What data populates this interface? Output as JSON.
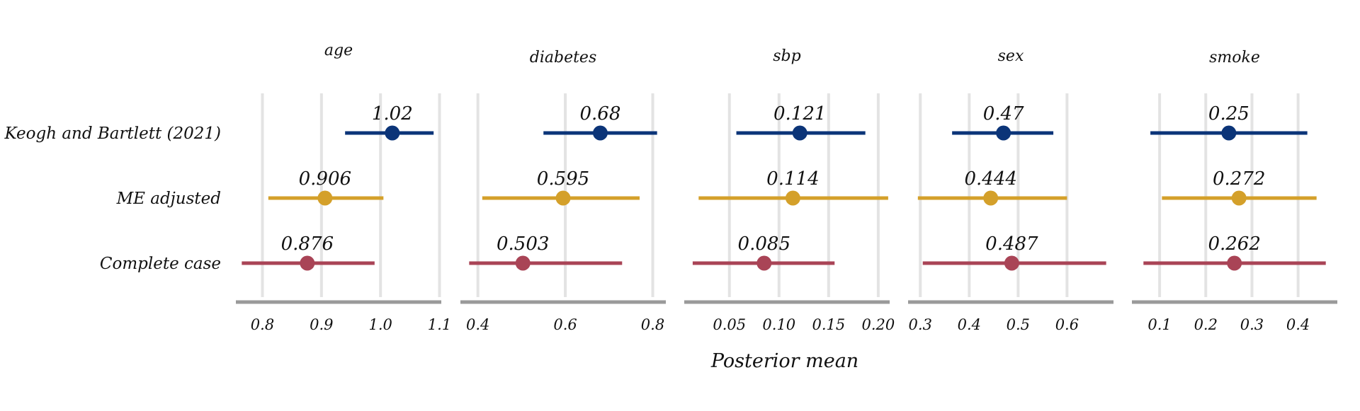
{
  "chart_data": {
    "type": "forest",
    "xlabel": "Posterior mean",
    "methods": [
      {
        "name": "Keogh and Bartlett (2021)",
        "color": "#0b3478"
      },
      {
        "name": "ME adjusted",
        "color": "#d4a02a"
      },
      {
        "name": "Complete case",
        "color": "#a94456"
      }
    ],
    "panels": [
      {
        "title": "age",
        "xlim": [
          0.755,
          1.103
        ],
        "ticks": [
          0.8,
          0.9,
          1.0,
          1.1
        ],
        "tick_labels": [
          "0.8",
          "0.9",
          "1.0",
          "1.1"
        ],
        "estimates": [
          {
            "label": "1.02",
            "mean": 1.02,
            "lower": 0.94,
            "upper": 1.09
          },
          {
            "label": "0.906",
            "mean": 0.906,
            "lower": 0.81,
            "upper": 1.005
          },
          {
            "label": "0.876",
            "mean": 0.876,
            "lower": 0.765,
            "upper": 0.99
          }
        ]
      },
      {
        "title": "diabetes",
        "xlim": [
          0.36,
          0.83
        ],
        "ticks": [
          0.4,
          0.6,
          0.8
        ],
        "tick_labels": [
          "0.4",
          "0.6",
          "0.8"
        ],
        "estimates": [
          {
            "label": "0.68",
            "mean": 0.68,
            "lower": 0.55,
            "upper": 0.81
          },
          {
            "label": "0.595",
            "mean": 0.595,
            "lower": 0.41,
            "upper": 0.77
          },
          {
            "label": "0.503",
            "mean": 0.503,
            "lower": 0.38,
            "upper": 0.73
          }
        ]
      },
      {
        "title": "sbp",
        "xlim": [
          0.0045,
          0.2115
        ],
        "ticks": [
          0.05,
          0.1,
          0.15,
          0.2
        ],
        "tick_labels": [
          "0.05",
          "0.10",
          "0.15",
          "0.20"
        ],
        "estimates": [
          {
            "label": "0.121",
            "mean": 0.121,
            "lower": 0.057,
            "upper": 0.187
          },
          {
            "label": "0.114",
            "mean": 0.114,
            "lower": 0.019,
            "upper": 0.21
          },
          {
            "label": "0.085",
            "mean": 0.085,
            "lower": 0.013,
            "upper": 0.156
          }
        ]
      },
      {
        "title": "sex",
        "xlim": [
          0.275,
          0.695
        ],
        "ticks": [
          0.3,
          0.4,
          0.5,
          0.6
        ],
        "tick_labels": [
          "0.3",
          "0.4",
          "0.5",
          "0.6"
        ],
        "estimates": [
          {
            "label": "0.47",
            "mean": 0.47,
            "lower": 0.365,
            "upper": 0.572
          },
          {
            "label": "0.444",
            "mean": 0.444,
            "lower": 0.295,
            "upper": 0.6
          },
          {
            "label": "0.487",
            "mean": 0.487,
            "lower": 0.305,
            "upper": 0.68
          }
        ]
      },
      {
        "title": "smoke",
        "xlim": [
          0.04,
          0.485
        ],
        "ticks": [
          0.1,
          0.2,
          0.3,
          0.4
        ],
        "tick_labels": [
          "0.1",
          "0.2",
          "0.3",
          "0.4"
        ],
        "estimates": [
          {
            "label": "0.25",
            "mean": 0.25,
            "lower": 0.08,
            "upper": 0.42
          },
          {
            "label": "0.272",
            "mean": 0.272,
            "lower": 0.105,
            "upper": 0.44
          },
          {
            "label": "0.262",
            "mean": 0.262,
            "lower": 0.065,
            "upper": 0.46
          }
        ]
      }
    ]
  }
}
